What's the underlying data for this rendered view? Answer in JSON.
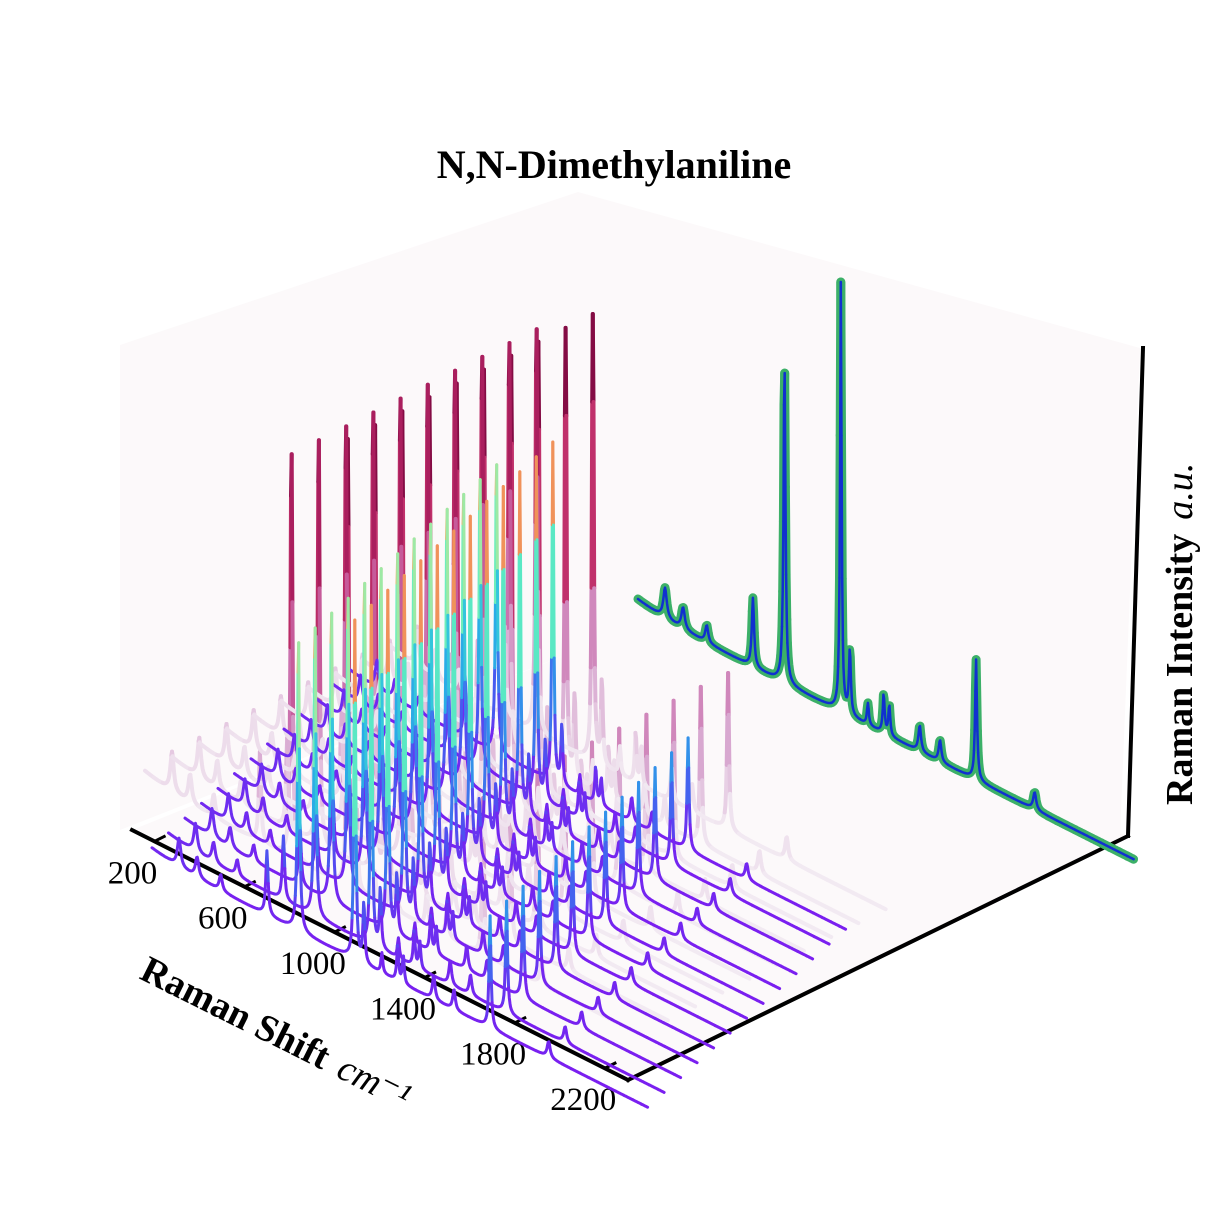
{
  "chart_data": {
    "type": "line",
    "projection": "3d-waterfall",
    "title": "N,N-Dimethylaniline",
    "xlabel": "Raman Shift",
    "xlabel_unit": "cm⁻¹",
    "zlabel": "Raman Intensity",
    "zlabel_unit": "a.u.",
    "x_ticks": [
      "200",
      "600",
      "1000",
      "1400",
      "1800",
      "2200"
    ],
    "x_tick_values": [
      200,
      600,
      1000,
      1400,
      1800,
      2200
    ],
    "xlim": [
      100,
      2300
    ],
    "grid": false,
    "peaks_cm": [
      {
        "x": 220,
        "w": 9,
        "h": 0.07
      },
      {
        "x": 300,
        "w": 9,
        "h": 0.05
      },
      {
        "x": 405,
        "w": 8,
        "h": 0.04
      },
      {
        "x": 610,
        "w": 6,
        "h": 0.16
      },
      {
        "x": 750,
        "w": 5,
        "h": 0.75
      },
      {
        "x": 1000,
        "w": 4,
        "h": 1.0
      },
      {
        "x": 1040,
        "w": 5,
        "h": 0.15
      },
      {
        "x": 1120,
        "w": 5,
        "h": 0.05
      },
      {
        "x": 1190,
        "w": 5,
        "h": 0.09
      },
      {
        "x": 1215,
        "w": 5,
        "h": 0.07
      },
      {
        "x": 1350,
        "w": 7,
        "h": 0.06
      },
      {
        "x": 1440,
        "w": 7,
        "h": 0.05
      },
      {
        "x": 1600,
        "w": 5,
        "h": 0.28
      },
      {
        "x": 1860,
        "w": 8,
        "h": 0.04
      }
    ],
    "colormaps": {
      "front_stack": [
        "#7a1ff0",
        "#4858f0",
        "#2aa8e8",
        "#3de0d0",
        "#8cf5b0",
        "#f0b070",
        "#f04020"
      ],
      "back_stack": [
        "#f2eaf2",
        "#d8a8d0",
        "#c868a8",
        "#c0306a",
        "#a01858",
        "#6a0030"
      ],
      "back_spectrum": [
        "#1030d0",
        "#3cb068"
      ]
    }
  }
}
